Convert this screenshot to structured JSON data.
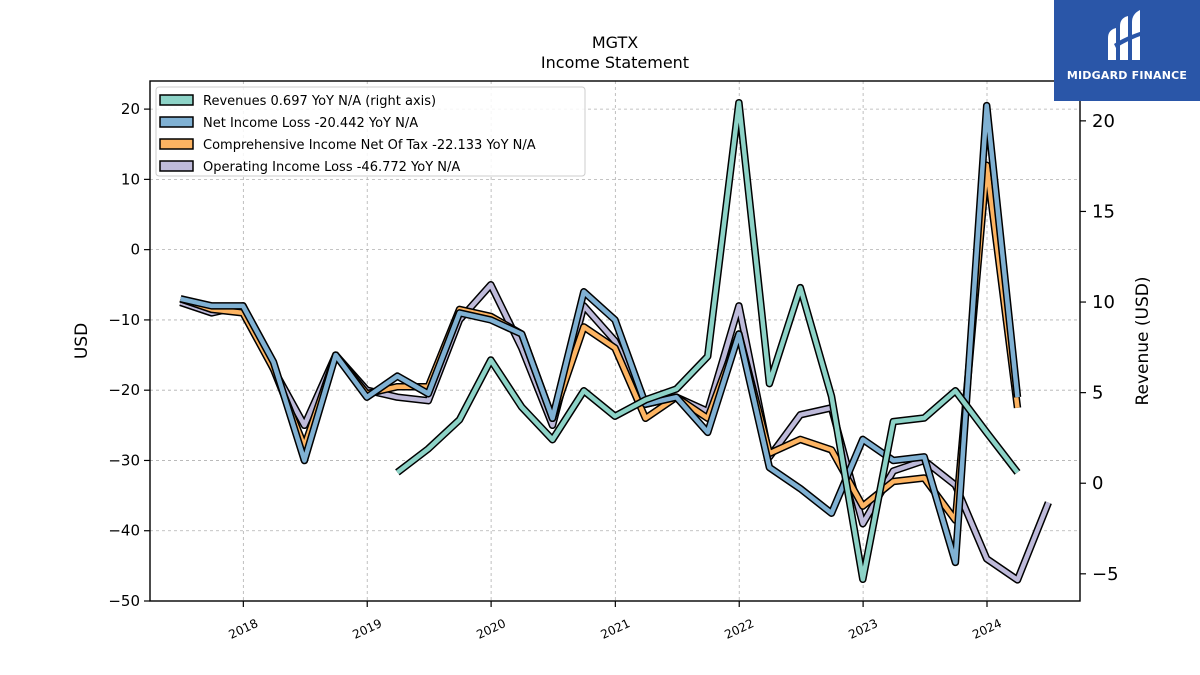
{
  "chart_data": {
    "type": "line",
    "title": "MGTX",
    "subtitle": "Income Statement",
    "ylabel": "USD",
    "y2label": "Revenue (USD)",
    "ylim": [
      -50,
      24
    ],
    "y2lim": [
      -6.5,
      22.2
    ],
    "yticks": [
      "20",
      "10",
      "0",
      "−10",
      "−20",
      "−30",
      "−40",
      "−50"
    ],
    "y2ticks": [
      "20",
      "15",
      "10",
      "5",
      "0",
      "−5"
    ],
    "xticks": [
      "2018",
      "2019",
      "2020",
      "2021",
      "2022",
      "2023",
      "2024"
    ],
    "grid": true,
    "legend_position": "top-left",
    "series": [
      {
        "name": "Revenues  0.697 YoY N/A (right axis)",
        "axis": "right",
        "color": "#8dd3c7",
        "x": [
          "2019-03-31",
          "2019-06-30",
          "2019-09-30",
          "2019-12-31",
          "2020-03-31",
          "2020-06-30",
          "2020-09-30",
          "2020-12-31",
          "2021-03-31",
          "2021-06-30",
          "2021-09-30",
          "2021-12-31",
          "2022-03-31",
          "2022-06-30",
          "2022-09-30",
          "2022-12-31",
          "2023-03-31",
          "2023-06-30",
          "2023-09-30",
          "2023-12-31",
          "2024-03-31"
        ],
        "values": [
          0.6,
          1.9,
          3.5,
          6.8,
          4.2,
          2.4,
          5.1,
          3.7,
          4.6,
          5.2,
          7.0,
          21.0,
          5.5,
          10.8,
          4.8,
          -5.3,
          3.4,
          3.6,
          5.1,
          2.8,
          0.6
        ]
      },
      {
        "name": "Net Income Loss  -20.442 YoY N/A",
        "axis": "left",
        "color": "#80b1d3",
        "x": [
          "2017-06-30",
          "2017-09-30",
          "2017-12-31",
          "2018-03-31",
          "2018-06-30",
          "2018-09-30",
          "2018-12-31",
          "2019-03-31",
          "2019-06-30",
          "2019-09-30",
          "2019-12-31",
          "2020-03-31",
          "2020-06-30",
          "2020-09-30",
          "2020-12-31",
          "2021-03-31",
          "2021-06-30",
          "2021-09-30",
          "2021-12-31",
          "2022-03-31",
          "2022-06-30",
          "2022-09-30",
          "2022-12-31",
          "2023-03-31",
          "2023-06-30",
          "2023-09-30",
          "2023-12-31",
          "2024-03-31"
        ],
        "values": [
          -7,
          -8,
          -8,
          -16,
          -30,
          -15,
          -21,
          -18,
          -20.5,
          -9,
          -10,
          -12,
          -24,
          -6,
          -10,
          -22,
          -21,
          -26,
          -12,
          -31,
          -34,
          -37.5,
          -27,
          -30,
          -29.5,
          -44.5,
          20.5,
          -21
        ]
      },
      {
        "name": "Comprehensive Income Net Of Tax  -22.133 YoY N/A",
        "axis": "left",
        "color": "#fdb462",
        "x": [
          "2017-06-30",
          "2017-09-30",
          "2017-12-31",
          "2018-03-31",
          "2018-06-30",
          "2018-09-30",
          "2018-12-31",
          "2019-03-31",
          "2019-06-30",
          "2019-09-30",
          "2019-12-31",
          "2020-03-31",
          "2020-06-30",
          "2020-09-30",
          "2020-12-31",
          "2021-03-31",
          "2021-06-30",
          "2021-09-30",
          "2021-12-31",
          "2022-03-31",
          "2022-06-30",
          "2022-09-30",
          "2022-12-31",
          "2023-03-31",
          "2023-06-30",
          "2023-09-30",
          "2023-12-31",
          "2024-03-31"
        ],
        "values": [
          -7,
          -8.5,
          -9,
          -17,
          -28,
          -15,
          -20.5,
          -19.5,
          -19.5,
          -8.5,
          -9.5,
          -12,
          -24,
          -11,
          -14,
          -24,
          -21,
          -24,
          -12,
          -29,
          -27,
          -28.5,
          -36.5,
          -33,
          -32.5,
          -38.5,
          12,
          -22.5
        ]
      },
      {
        "name": "Operating Income Loss  -46.772 YoY N/A",
        "axis": "left",
        "color": "#bebada",
        "x": [
          "2017-06-30",
          "2017-09-30",
          "2017-12-31",
          "2018-03-31",
          "2018-06-30",
          "2018-09-30",
          "2018-12-31",
          "2019-03-31",
          "2019-06-30",
          "2019-09-30",
          "2019-12-31",
          "2020-03-31",
          "2020-06-30",
          "2020-09-30",
          "2020-12-31",
          "2021-03-31",
          "2021-06-30",
          "2021-09-30",
          "2021-12-31",
          "2022-03-31",
          "2022-06-30",
          "2022-09-30",
          "2022-12-31",
          "2023-03-31",
          "2023-06-30",
          "2023-09-30",
          "2023-12-31",
          "2024-03-31",
          "2024-06-30"
        ],
        "values": [
          -7.5,
          -9,
          -8,
          -17,
          -25,
          -15,
          -20,
          -21,
          -21.5,
          -10,
          -5,
          -14,
          -25,
          -8,
          -13,
          -22,
          -21,
          -23,
          -8,
          -29.5,
          -23.5,
          -22.5,
          -39,
          -31.5,
          -30,
          -33.5,
          -44,
          -47,
          -36
        ]
      }
    ]
  },
  "logo": {
    "text": "MIDGARD FINANCE"
  }
}
